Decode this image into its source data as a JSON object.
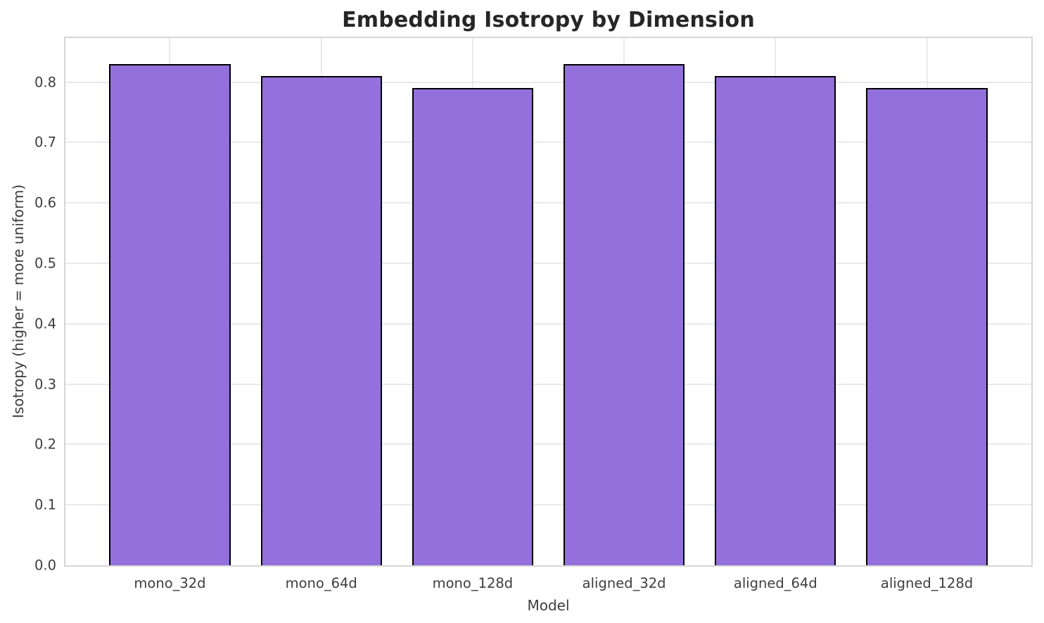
{
  "chart_data": {
    "type": "bar",
    "title": "Embedding Isotropy by Dimension",
    "xlabel": "Model",
    "ylabel": "Isotropy (higher = more uniform)",
    "categories": [
      "mono_32d",
      "mono_64d",
      "mono_128d",
      "aligned_32d",
      "aligned_64d",
      "aligned_128d"
    ],
    "values": [
      0.83,
      0.81,
      0.79,
      0.83,
      0.81,
      0.79
    ],
    "yticks": [
      0.0,
      0.1,
      0.2,
      0.3,
      0.4,
      0.5,
      0.6,
      0.7,
      0.8
    ],
    "ytick_labels": [
      "0.0",
      "0.1",
      "0.2",
      "0.3",
      "0.4",
      "0.5",
      "0.6",
      "0.7",
      "0.8"
    ],
    "ylim": [
      0,
      0.873
    ],
    "xlim": [
      -0.69,
      5.69
    ],
    "bar_width": 0.8,
    "grid": true,
    "legend": null,
    "bar_color": "#9370DB",
    "bar_edge_color": "#000000",
    "grid_color": "#eaeaea",
    "spine_color": "#d6d6d6",
    "title_color": "#262626",
    "tick_color": "#3d3d3d"
  }
}
